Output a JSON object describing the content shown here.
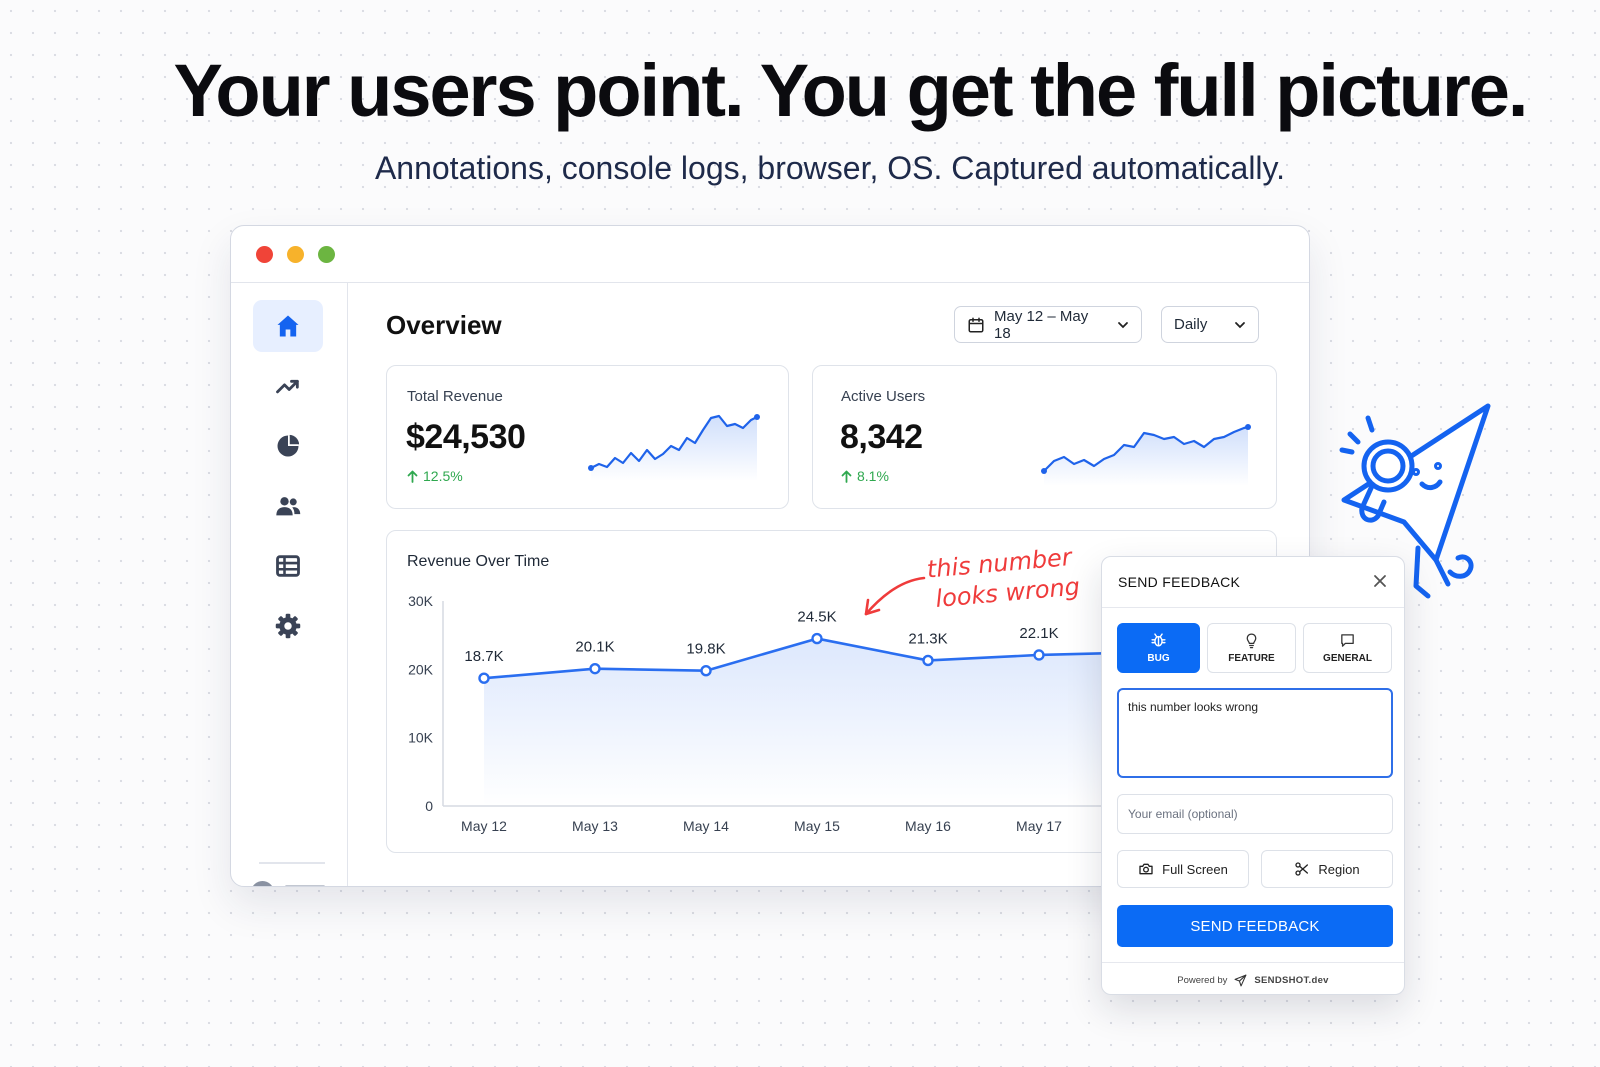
{
  "hero": {
    "headline": "Your users point. You get the full picture.",
    "subline": "Annotations, console logs, browser, OS. Captured automatically."
  },
  "window": {
    "dots": [
      "red",
      "yellow",
      "green"
    ]
  },
  "sidebar": {
    "items": [
      {
        "icon": "home-icon",
        "active": true
      },
      {
        "icon": "trending-up-icon",
        "active": false
      },
      {
        "icon": "pie-chart-icon",
        "active": false
      },
      {
        "icon": "users-icon",
        "active": false
      },
      {
        "icon": "table-icon",
        "active": false
      },
      {
        "icon": "gear-icon",
        "active": false
      }
    ]
  },
  "dashboard": {
    "title": "Overview",
    "date_range": "May 12 – May 18",
    "period": "Daily",
    "metrics": [
      {
        "label": "Total Revenue",
        "value": "$24,530",
        "change": "12.5%"
      },
      {
        "label": "Active Users",
        "value": "8,342",
        "change": "8.1%"
      }
    ]
  },
  "chart_data": {
    "type": "line",
    "title": "Revenue Over Time",
    "categories": [
      "May 12",
      "May 13",
      "May 14",
      "May 15",
      "May 16",
      "May 17"
    ],
    "values": [
      18.7,
      20.1,
      19.8,
      24.5,
      21.3,
      22.1
    ],
    "data_labels": [
      "18.7K",
      "20.1K",
      "19.8K",
      "24.5K",
      "21.3K",
      "22.1K"
    ],
    "y_ticks": [
      "0",
      "10K",
      "20K",
      "30K"
    ],
    "ylim": [
      0,
      30
    ],
    "grid": false,
    "color": "#2a6ef0"
  },
  "annotation": {
    "line1": "this number",
    "line2": "looks wrong",
    "color": "#ef3b3b"
  },
  "feedback": {
    "title": "SEND FEEDBACK",
    "tabs": [
      {
        "label": "BUG",
        "icon": "bug-icon",
        "active": true
      },
      {
        "label": "FEATURE",
        "icon": "lightbulb-icon",
        "active": false
      },
      {
        "label": "GENERAL",
        "icon": "message-icon",
        "active": false
      }
    ],
    "message": "this number looks wrong",
    "email_placeholder": "Your email (optional)",
    "capture_full": "Full Screen",
    "capture_region": "Region",
    "send_label": "SEND FEEDBACK",
    "powered_by": "Powered by",
    "brand": "SENDSHOT.dev",
    "accent": "#0b6bf5"
  }
}
